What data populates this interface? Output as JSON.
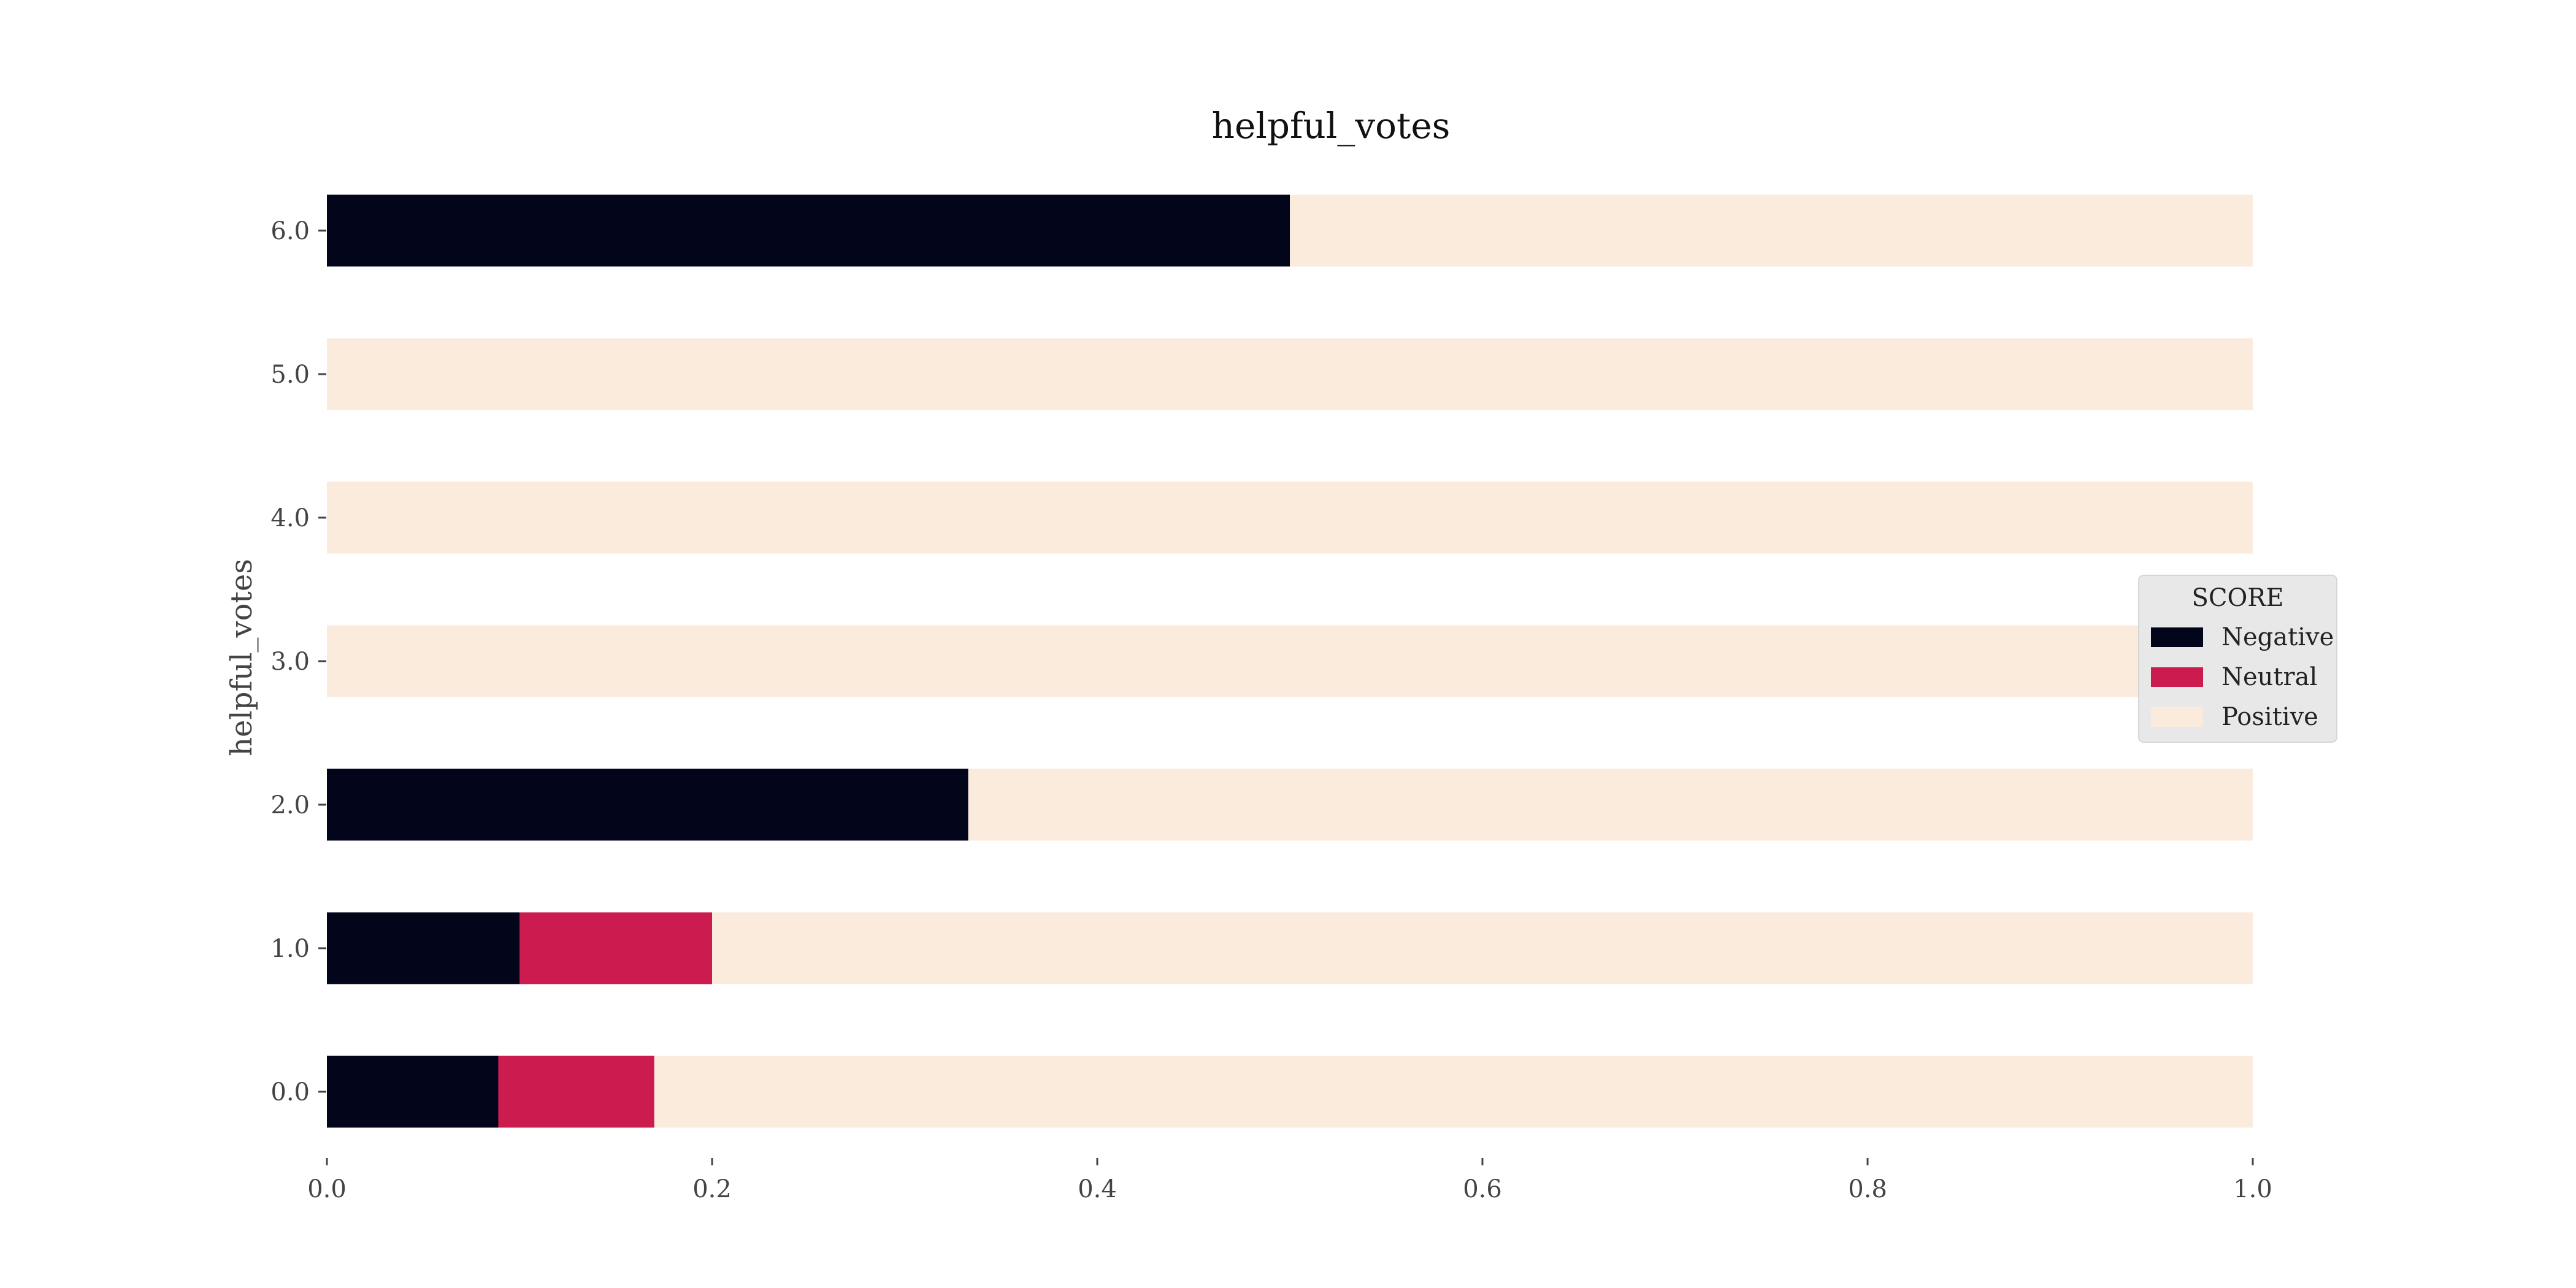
{
  "chart_data": {
    "type": "bar",
    "orientation": "horizontal",
    "stacked": true,
    "title": "helpful_votes",
    "xlabel": "",
    "ylabel": "helpful_votes",
    "categories": [
      "0.0",
      "1.0",
      "2.0",
      "3.0",
      "4.0",
      "5.0",
      "6.0"
    ],
    "xlim": [
      0,
      1
    ],
    "xticks": [
      "0.0",
      "0.2",
      "0.4",
      "0.6",
      "0.8",
      "1.0"
    ],
    "grid": false,
    "legend": {
      "title": "SCORE",
      "placement": "center-right"
    },
    "series": [
      {
        "name": "Negative",
        "color": "#03051a",
        "values": [
          0.089,
          0.1,
          0.333,
          0.0,
          0.0,
          0.0,
          0.5
        ]
      },
      {
        "name": "Neutral",
        "color": "#cb1b4f",
        "values": [
          0.081,
          0.1,
          0.0,
          0.0,
          0.0,
          0.0,
          0.0
        ]
      },
      {
        "name": "Positive",
        "color": "#faebdd",
        "values": [
          0.83,
          0.8,
          0.667,
          1.0,
          1.0,
          1.0,
          0.5
        ]
      }
    ]
  }
}
